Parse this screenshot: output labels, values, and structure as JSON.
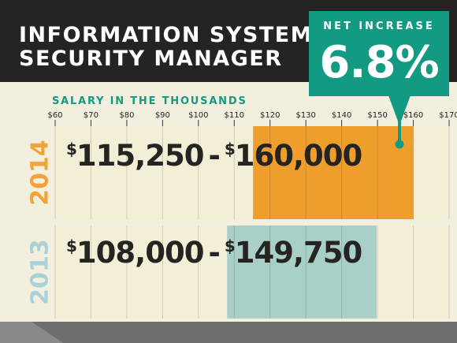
{
  "title": "INFORMATION SYSTEMS\nSECURITY MANAGER",
  "callout": {
    "label": "NET INCREASE",
    "value": "6.8%"
  },
  "subtitle": "SALARY IN THE THOUSANDS",
  "colors": {
    "header_bg": "#262422",
    "accent_teal": "#129a82",
    "bar_2014": "#ee9e2c",
    "bar_2013": "#a8d0c9",
    "track": "#f3eed6",
    "label_2014": "#f0a437",
    "label_2013": "#a9d2d8",
    "text_dark": "#262422"
  },
  "chart_data": {
    "type": "bar",
    "orientation": "horizontal-range",
    "title": "INFORMATION SYSTEMS SECURITY MANAGER",
    "subtitle": "SALARY IN THE THOUSANDS",
    "xlim": [
      60,
      170
    ],
    "x_ticks": [
      "$60",
      "$70",
      "$80",
      "$90",
      "$100",
      "$110",
      "$120",
      "$130",
      "$140",
      "$150",
      "$160",
      "$170"
    ],
    "categories": [
      "2014",
      "2013"
    ],
    "ranges": [
      {
        "year": "2014",
        "low": 115.25,
        "high": 160,
        "low_label": "115,250",
        "high_label": "160,000"
      },
      {
        "year": "2013",
        "low": 108,
        "high": 149.75,
        "low_label": "108,000",
        "high_label": "149,750"
      }
    ],
    "annotation": {
      "label": "NET INCREASE",
      "value": "6.8%"
    },
    "grid": true
  }
}
